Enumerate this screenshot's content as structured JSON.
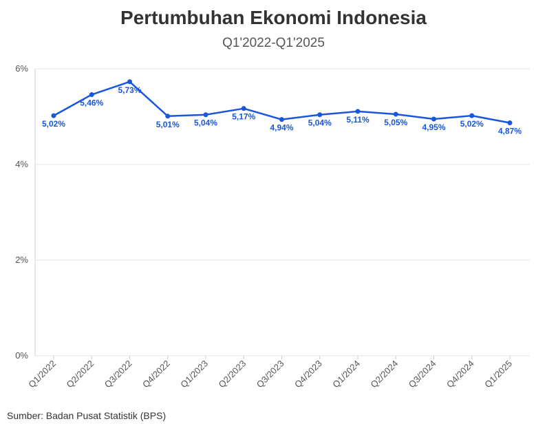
{
  "title": "Pertumbuhan Ekonomi Indonesia",
  "subtitle": "Q1'2022-Q1'2025",
  "source": "Sumber: Badan Pusat Statistik (BPS)",
  "colors": {
    "line": "#1a56db",
    "grid": "#e6e6e6",
    "axis": "#cccccc"
  },
  "chart_data": {
    "type": "line",
    "title": "Pertumbuhan Ekonomi Indonesia",
    "subtitle": "Q1'2022-Q1'2025",
    "categories": [
      "Q1/2022",
      "Q2/2022",
      "Q3/2022",
      "Q4/2022",
      "Q1/2023",
      "Q2/2023",
      "Q3/2023",
      "Q4/2023",
      "Q1/2024",
      "Q2/2024",
      "Q3/2024",
      "Q4/2024",
      "Q1/2025"
    ],
    "series": [
      {
        "values": [
          5.02,
          5.46,
          5.73,
          5.01,
          5.04,
          5.17,
          4.94,
          5.04,
          5.11,
          5.05,
          4.95,
          5.02,
          4.87
        ],
        "labels": [
          "5,02%",
          "5,46%",
          "5,73%",
          "5,01%",
          "5,04%",
          "5,17%",
          "4,94%",
          "5,04%",
          "5,11%",
          "5,05%",
          "4,95%",
          "5,02%",
          "4,87%"
        ]
      }
    ],
    "ylim": [
      0,
      6
    ],
    "yticks": [
      0,
      2,
      4,
      6
    ],
    "ytick_labels": [
      "0%",
      "2%",
      "4%",
      "6%"
    ],
    "xlabel": "",
    "ylabel": "",
    "grid": true,
    "legend": "none"
  }
}
